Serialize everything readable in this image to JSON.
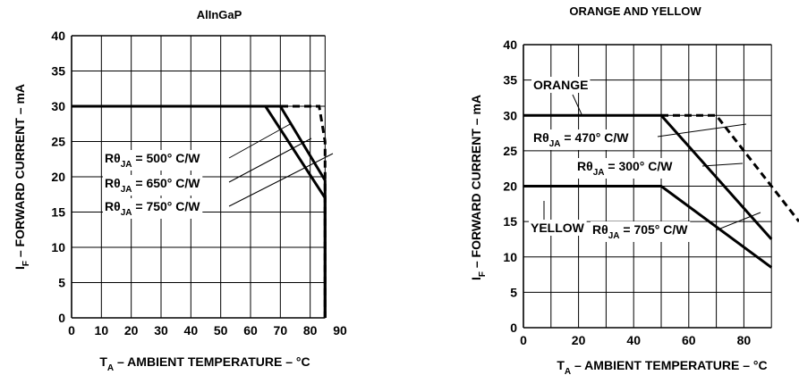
{
  "chart_data": [
    {
      "type": "line",
      "title": "AlInGaP",
      "xlabel": {
        "main": "T",
        "sub": "A",
        "rest": " – AMBIENT TEMPERATURE – °C"
      },
      "ylabel": {
        "main": "I",
        "sub": "F",
        "rest": " – FORWARD CURRENT – mA"
      },
      "xlim": [
        0,
        90
      ],
      "ylim": [
        0,
        40
      ],
      "xticks": [
        0,
        10,
        20,
        30,
        40,
        50,
        60,
        70,
        80,
        90
      ],
      "yticks": [
        0,
        5,
        10,
        15,
        20,
        25,
        30,
        35,
        40
      ],
      "xgrid": [
        0,
        10,
        20,
        30,
        40,
        50,
        60,
        70,
        80,
        85
      ],
      "ygrid": [
        0,
        5,
        10,
        15,
        20,
        25,
        30,
        35,
        40
      ],
      "grid": true,
      "series": [
        {
          "name": "RθJA = 500° C/W",
          "style": "dashed",
          "x": [
            0,
            78,
            83,
            85,
            85
          ],
          "y": [
            30,
            30,
            30,
            25,
            0
          ]
        },
        {
          "name": "RθJA = 650° C/W",
          "style": "solid",
          "x": [
            0,
            70,
            85,
            85
          ],
          "y": [
            30,
            30,
            19.5,
            0
          ]
        },
        {
          "name": "RθJA = 750° C/W",
          "style": "solid",
          "x": [
            0,
            65,
            85,
            85
          ],
          "y": [
            30,
            30,
            17,
            0
          ]
        }
      ],
      "annotations": [
        {
          "main": "Rθ",
          "sub": "JA",
          "rest": " = 500° C/W"
        },
        {
          "main": "Rθ",
          "sub": "JA",
          "rest": " = 650° C/W"
        },
        {
          "main": "Rθ",
          "sub": "JA",
          "rest": " = 750° C/W"
        }
      ]
    },
    {
      "type": "line",
      "title": "ORANGE AND YELLOW",
      "xlabel": {
        "main": "T",
        "sub": "A",
        "rest": " – AMBIENT TEMPERATURE – °C"
      },
      "ylabel": {
        "main": "I",
        "sub": "F",
        "rest": " – FORWARD CURRENT – mA"
      },
      "xlim": [
        0,
        100
      ],
      "ylim": [
        0,
        40
      ],
      "xticks": [
        0,
        20,
        40,
        60,
        80
      ],
      "yticks": [
        0,
        5,
        10,
        15,
        20,
        25,
        30,
        35,
        40
      ],
      "xgrid": [
        0,
        10,
        20,
        30,
        40,
        50,
        60,
        70,
        80,
        90
      ],
      "ygrid": [
        0,
        5,
        10,
        15,
        20,
        25,
        30,
        35,
        40
      ],
      "grid": true,
      "series": [
        {
          "name": "ORANGE RθJA = 470° C/W",
          "style": "dashed",
          "x": [
            50,
            70,
            100
          ],
          "y": [
            30,
            30,
            15
          ]
        },
        {
          "name": "ORANGE RθJA = 300° C/W",
          "style": "solid",
          "x": [
            0,
            50,
            90
          ],
          "y": [
            30,
            30,
            12.5
          ]
        },
        {
          "name": "YELLOW RθJA = 705° C/W",
          "style": "solid",
          "x": [
            0,
            50,
            90
          ],
          "y": [
            20,
            20,
            8.5
          ]
        }
      ],
      "labels": [
        "ORANGE",
        "YELLOW"
      ],
      "annotations": [
        {
          "main": "Rθ",
          "sub": "JA",
          "rest": " = 470° C/W"
        },
        {
          "main": "Rθ",
          "sub": "JA",
          "rest": " = 300° C/W"
        },
        {
          "main": "Rθ",
          "sub": "JA",
          "rest": " = 705° C/W"
        }
      ]
    }
  ]
}
